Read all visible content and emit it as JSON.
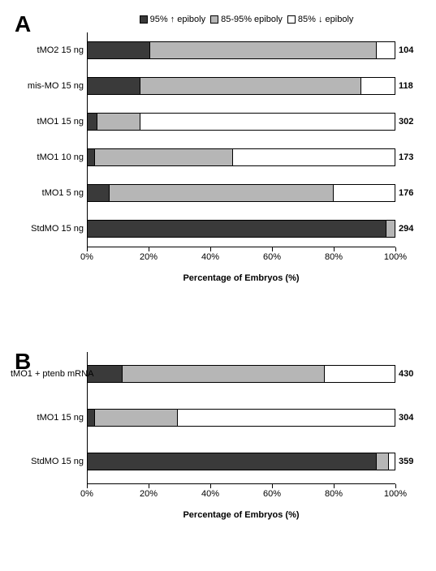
{
  "colors": {
    "dark": "#3a3a3a",
    "mid": "#b6b6b6",
    "light": "#ffffff",
    "border": "#000000",
    "bg": "#ffffff"
  },
  "legend": {
    "items": [
      {
        "label": "95% ↑ epiboly",
        "fill": "#3a3a3a"
      },
      {
        "label": "85-95% epiboly",
        "fill": "#b6b6b6"
      },
      {
        "label": "85% ↓ epiboly",
        "fill": "#ffffff"
      }
    ]
  },
  "axis": {
    "label": "Percentage of Embryos (%)",
    "ticks": [
      0,
      20,
      40,
      60,
      80,
      100
    ]
  },
  "panelA": {
    "label": "A",
    "row_gap": 22,
    "rows": [
      {
        "name": "tMO2 15 ng",
        "n": 104,
        "segs": [
          20,
          74,
          6
        ]
      },
      {
        "name": "mis-MO 15 ng",
        "n": 118,
        "segs": [
          17,
          72,
          11
        ]
      },
      {
        "name": "tMO1 15 ng",
        "n": 302,
        "segs": [
          3,
          14,
          83
        ]
      },
      {
        "name": "tMO1 10 ng",
        "n": 173,
        "segs": [
          2,
          45,
          53
        ]
      },
      {
        "name": "tMO1 5 ng",
        "n": 176,
        "segs": [
          7,
          73,
          20
        ]
      },
      {
        "name": "StdMO 15 ng",
        "n": 294,
        "segs": [
          97,
          3,
          0
        ]
      }
    ]
  },
  "panelB": {
    "label": "B",
    "row_gap": 32,
    "rows": [
      {
        "name": "tMO1 + ptenb mRNA",
        "n": 430,
        "segs": [
          11,
          66,
          23
        ]
      },
      {
        "name": "tMO1 15 ng",
        "n": 304,
        "segs": [
          2,
          27,
          71
        ]
      },
      {
        "name": "StdMO 15 ng",
        "n": 359,
        "segs": [
          94,
          4,
          2
        ]
      }
    ]
  }
}
